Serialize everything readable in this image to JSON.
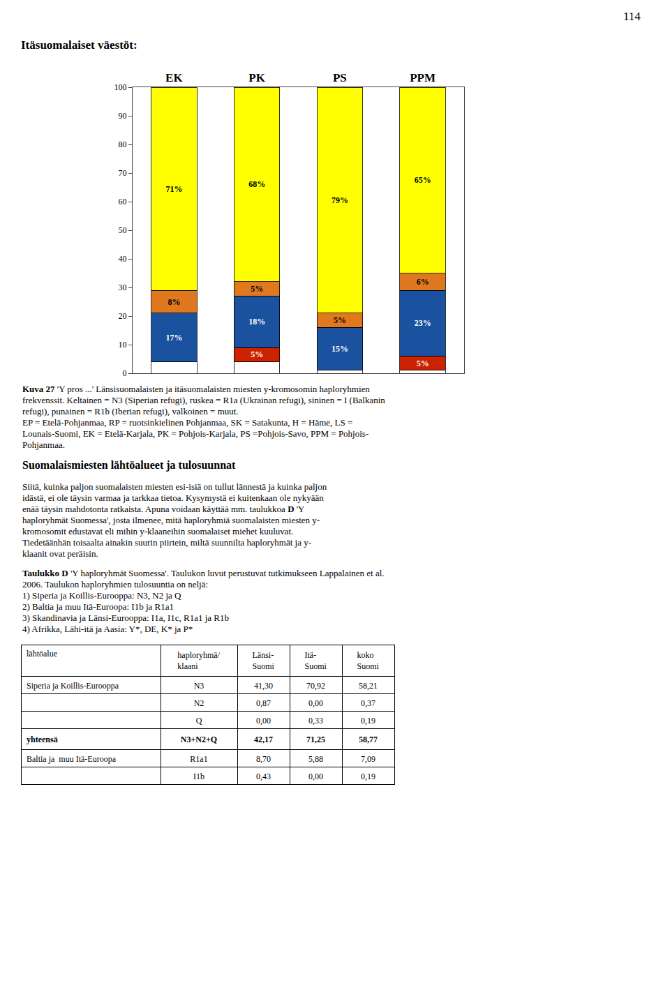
{
  "chart_data": [
    {
      "type": "bar",
      "stacked": true,
      "title": "Itäsuomalaiset väestöt:",
      "categories": [
        "EK",
        "PK",
        "PS",
        "PPM"
      ],
      "series": [
        {
          "color": "#FFFFFF",
          "values": [
            4,
            4,
            1,
            1
          ],
          "value_labels": [
            null,
            null,
            null,
            null
          ]
        },
        {
          "color": "#CC2200",
          "values": [
            null,
            5,
            null,
            5
          ],
          "value_labels": [
            null,
            "5%",
            null,
            "5%"
          ]
        },
        {
          "color": "#1A52A0",
          "values": [
            17,
            18,
            15,
            23
          ],
          "value_labels": [
            "17%",
            "18%",
            "15%",
            "23%"
          ]
        },
        {
          "color": "#E07820",
          "values": [
            8,
            5,
            5,
            6
          ],
          "value_labels": [
            "8%",
            "5%",
            "5%",
            "6%"
          ]
        },
        {
          "color": "#FFFF00",
          "values": [
            71,
            68,
            79,
            65
          ],
          "value_labels": [
            "71%",
            "68%",
            "79%",
            "65%"
          ]
        }
      ],
      "ylim": [
        0,
        100
      ],
      "yticks": [
        0,
        10,
        20,
        30,
        40,
        50,
        60,
        70,
        80,
        90,
        100
      ],
      "grid": false,
      "data_labels": true,
      "annotations": [
        [
          [
            {
              "text": "114",
              "bold": false
            }
          ]
        ],
        [
          [
            {
              "text": "Kuva 27",
              "bold": true
            },
            {
              "text": "'Y pros ...' Länsisuomalaisten ja itäsuomalaisten miesten y-kromosomin haploryhmien",
              "bold": false
            }
          ],
          [
            {
              "text": "frekvenssit. Keltainen = N3 (Siperian refugi), ruskea = R1a (Ukrainan refugi), sininen = I (Balkanin",
              "bold": false
            }
          ],
          [
            {
              "text": "refugi), punainen = R1b (Iberian refugi), valkoinen = muut.",
              "bold": false
            }
          ],
          [
            {
              "text": "EP = Etelä-Pohjanmaa, RP = ruotsinkielinen Pohjanmaa, SK = Satakunta, H = Häme, LS =",
              "bold": false
            }
          ],
          [
            {
              "text": "Lounais-Suomi, EK = Etelä-Karjala, PK = Pohjois-Karjala, PS =Pohjois-Savo, PPM = Pohjois-",
              "bold": false
            }
          ],
          [
            {
              "text": "Pohjanmaa.",
              "bold": false
            }
          ]
        ],
        [
          [
            {
              "text": "Suomalaismiesten lähtöalueet ja tulosuunnat",
              "bold": true
            }
          ]
        ],
        [
          [
            {
              "text": "Siitä, kuinka paljon suomalaisten miesten esi-isiä on tullut lännestä ja kuinka paljon",
              "bold": false
            }
          ],
          [
            {
              "text": "idästä, ei ole täysin varmaa ja tarkkaa tietoa. Kysymystä ei kuitenkaan ole nykyään",
              "bold": false
            }
          ],
          [
            {
              "text": "enää täysin mahdotonta ratkaista. Apuna voidaan käyttää mm. taulukkoa ",
              "bold": false
            },
            {
              "text": "D",
              "bold": true
            },
            {
              "text": "'Y",
              "bold": false
            }
          ],
          [
            {
              "text": "haploryhmät Suomessa', josta ilmenee, mitä haploryhmiä suomalaisten miesten y-",
              "bold": false
            }
          ],
          [
            {
              "text": "kromosomit edustavat eli mihin y-klaaneihin suomalaiset miehet kuuluvat.",
              "bold": false
            }
          ],
          [
            {
              "text": "Tiedetäänhän toisaalta ainakin suurin piirtein, miltä suunnilta haploryhmät ja y-",
              "bold": false
            }
          ],
          [
            {
              "text": "klaanit ovat peräisin.",
              "bold": false
            }
          ]
        ],
        [
          [
            {
              "text": "Taulukko D",
              "bold": true
            },
            {
              "text": "'Y haploryhmät Suomessa'. Taulukon luvut perustuvat tutkimukseen Lappalainen et al.",
              "bold": false
            }
          ],
          [
            {
              "text": "2006. Taulukon haploryhmien tulosuuntia on neljä:",
              "bold": false
            }
          ],
          [
            {
              "text": "1) Siperia ja Koillis-Eurooppa: N3, N2 ja Q",
              "bold": false
            }
          ],
          [
            {
              "text": "2) Baltia ja muu Itä-Euroopa: I1b ja R1a1",
              "bold": false
            }
          ],
          [
            {
              "text": "3) Skandinavia ja Länsi-Eurooppa: I1a, I1c, R1a1 ja R1b",
              "bold": false
            }
          ],
          [
            {
              "text": "4) Afrikka, Lähi-itä ja Aasia: Y*, DE, K* ja P*",
              "bold": false
            }
          ]
        ]
      ]
    },
    {
      "type": "table",
      "columns": [
        "lähtöalue",
        "haploryhmä/\nklaani",
        "Länsi-\nSuomi",
        "Itä-\nSuomi",
        "koko\nSuomi"
      ],
      "rows": [
        {
          "cells": [
            "Siperia ja Koillis-Eurooppa",
            "N3",
            "41,30",
            "70,92",
            "58,21"
          ],
          "bold": false
        },
        {
          "cells": [
            null,
            "N2",
            "0,87",
            "0,00",
            "0,37"
          ],
          "bold": false
        },
        {
          "cells": [
            null,
            "Q",
            "0,00",
            "0,33",
            "0,19"
          ],
          "bold": false
        },
        {
          "cells": [
            "yhteensä",
            "N3+N2+Q",
            "42,17",
            "71,25",
            "58,77"
          ],
          "bold": true
        },
        {
          "cells": [
            "Baltia ja  muu Itä-Euroopa",
            "R1a1",
            "8,70",
            "5,88",
            "7,09"
          ],
          "bold": false
        },
        {
          "cells": [
            null,
            "I1b",
            "0,43",
            "0,00",
            "0,19"
          ],
          "bold": false
        }
      ]
    }
  ]
}
